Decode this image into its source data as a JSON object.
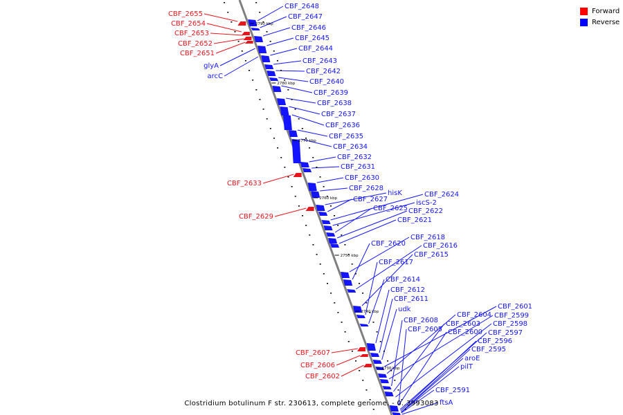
{
  "colors": {
    "forward": "#e8141c",
    "reverse": "#1414ff",
    "axis": "#7f7f7f",
    "ticks": "#000000"
  },
  "legend": [
    {
      "label": "Forward",
      "color": "#ff0000"
    },
    {
      "label": "Reverse",
      "color": "#0000ff"
    }
  ],
  "footer": "Clostridium botulinum F str. 230613, complete genome. - 0..3993083",
  "kbp_marks": [
    "2790 kbp",
    "2780 kbp",
    "2770 kbp",
    "2760 kbp",
    "2750 kbp",
    "2740 kbp",
    "2730 kbp"
  ],
  "forward_genes": [
    "CBF_2655",
    "CBF_2654",
    "CBF_2653",
    "CBF_2652",
    "CBF_2651",
    "CBF_2633",
    "CBF_2629",
    "CBF_2607",
    "CBF_2606",
    "CBF_2602"
  ],
  "reverse_left_genes": [
    "glyA",
    "arcC"
  ],
  "reverse_genes": [
    "CBF_2648",
    "CBF_2647",
    "CBF_2646",
    "CBF_2645",
    "CBF_2644",
    "CBF_2643",
    "CBF_2642",
    "CBF_2640",
    "CBF_2639",
    "CBF_2638",
    "CBF_2637",
    "CBF_2636",
    "CBF_2635",
    "CBF_2634",
    "CBF_2632",
    "CBF_2631",
    "CBF_2630",
    "CBF_2628",
    "hisK",
    "CBF_2627",
    "CBF_2624",
    "iscS-2",
    "CBF_2625",
    "CBF_2622",
    "CBF_2621",
    "CBF_2618",
    "CBF_2620",
    "CBF_2616",
    "CBF_2615",
    "CBF_2617",
    "CBF_2614",
    "CBF_2612",
    "CBF_2611",
    "udk",
    "CBF_2601",
    "CBF_2604",
    "CBF_2599",
    "CBF_2608",
    "CBF_2603",
    "CBF_2598",
    "CBF_2605",
    "CBF_2600",
    "CBF_2597",
    "CBF_2596",
    "CBF_2595",
    "aroE",
    "pilT",
    "CBF_2591",
    "ftsA"
  ]
}
